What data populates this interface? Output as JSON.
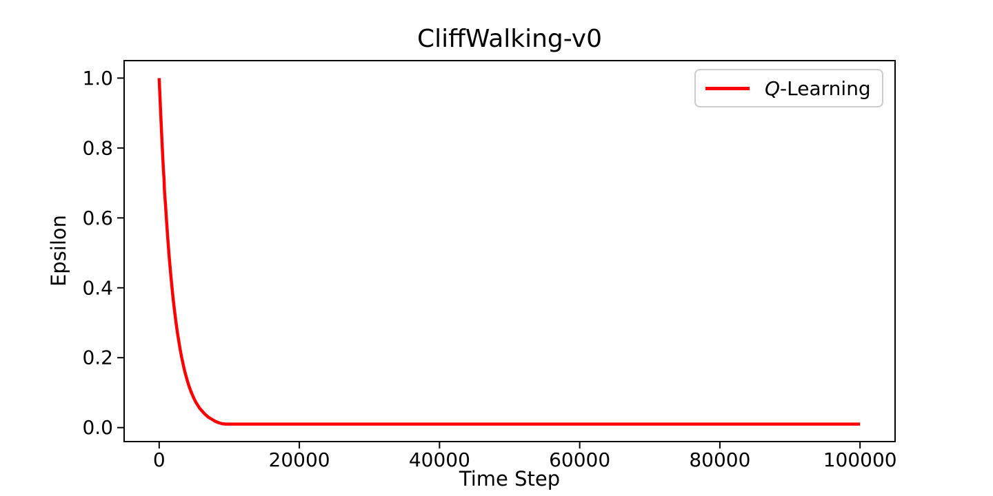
{
  "figure": {
    "background": "#ffffff",
    "text_color": "#000000",
    "axes_color": "#000000"
  },
  "chart_data": {
    "type": "line",
    "title": "CliffWalking-v0",
    "xlabel": "Time Step",
    "ylabel": "Epsilon",
    "xlim": [
      -5000,
      105000
    ],
    "ylim": [
      -0.04,
      1.05
    ],
    "xticks": [
      0,
      20000,
      40000,
      60000,
      80000,
      100000
    ],
    "xtick_labels": [
      "0",
      "20000",
      "40000",
      "60000",
      "80000",
      "100000"
    ],
    "yticks": [
      0.0,
      0.2,
      0.4,
      0.6,
      0.8,
      1.0
    ],
    "ytick_labels": [
      "0.0",
      "0.2",
      "0.4",
      "0.6",
      "0.8",
      "1.0"
    ],
    "grid": false,
    "legend": {
      "position": "upper right",
      "entries": [
        {
          "label": "Q-Learning",
          "label_italic_part": "Q",
          "label_regular_part": "-Learning",
          "color": "#ff0000"
        }
      ]
    },
    "series": [
      {
        "name": "Q-Learning",
        "color": "#ff0000",
        "line_width": 4.5,
        "x": [
          0,
          200,
          400,
          600,
          650,
          700,
          750,
          800,
          900,
          1000,
          1200,
          1400,
          1600,
          1800,
          2000,
          2200,
          2400,
          2600,
          2800,
          3000,
          3200,
          3400,
          3600,
          3800,
          4000,
          4250,
          4500,
          4750,
          5000,
          5250,
          5500,
          5750,
          6000,
          6500,
          7000,
          7500,
          8000,
          8500,
          9000,
          9500,
          10000,
          11000,
          12000,
          14000,
          16000,
          20000,
          30000,
          40000,
          50000,
          60000,
          70000,
          80000,
          90000,
          100000
        ],
        "y": [
          1.0,
          0.905,
          0.819,
          0.741,
          0.725,
          0.712,
          0.68,
          0.667,
          0.638,
          0.607,
          0.549,
          0.497,
          0.449,
          0.407,
          0.368,
          0.333,
          0.301,
          0.273,
          0.247,
          0.223,
          0.202,
          0.183,
          0.165,
          0.15,
          0.135,
          0.119,
          0.105,
          0.093,
          0.082,
          0.072,
          0.064,
          0.056,
          0.05,
          0.039,
          0.03,
          0.024,
          0.018,
          0.014,
          0.011,
          0.01,
          0.01,
          0.01,
          0.01,
          0.01,
          0.01,
          0.01,
          0.01,
          0.01,
          0.01,
          0.01,
          0.01,
          0.01,
          0.01,
          0.01
        ]
      }
    ]
  }
}
